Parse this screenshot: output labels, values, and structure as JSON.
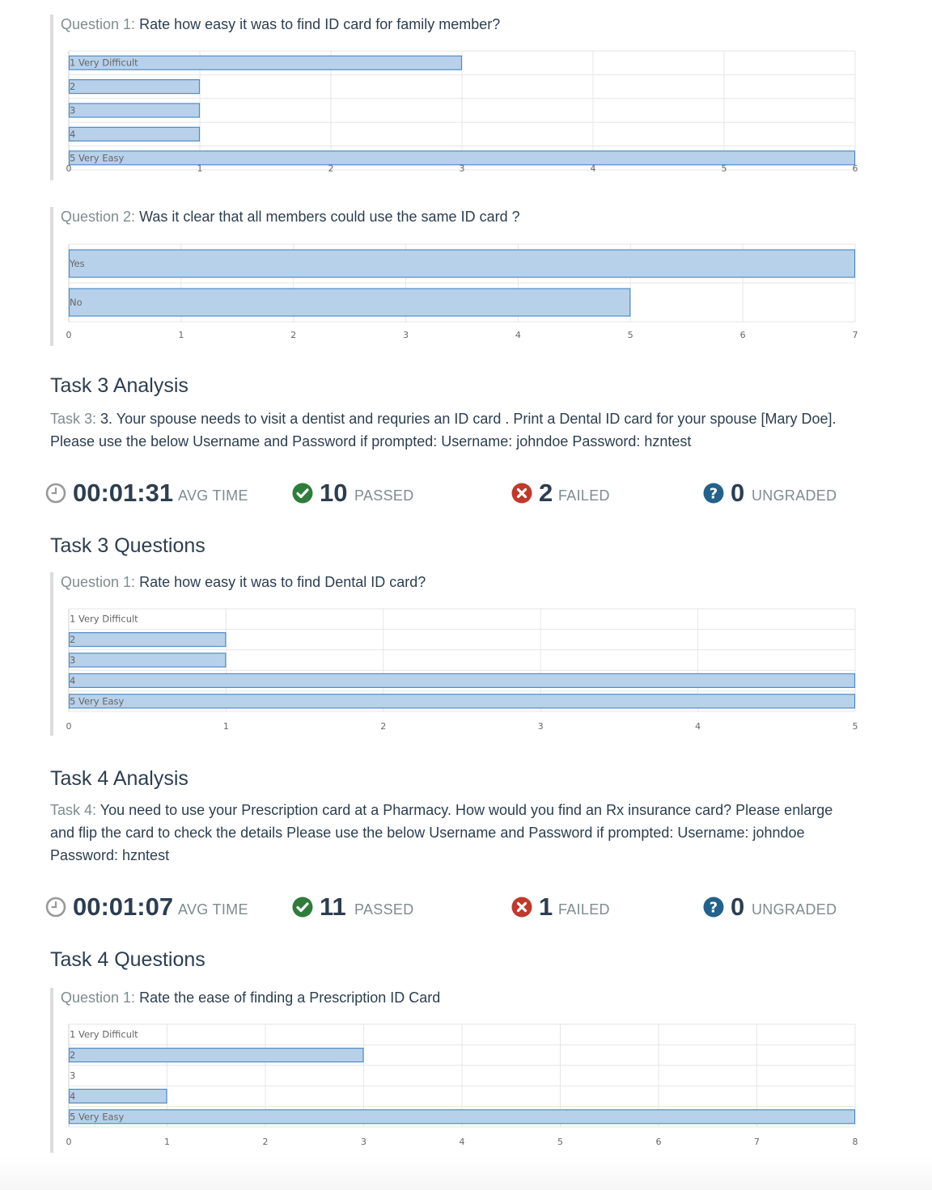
{
  "colors": {
    "bar_fill": "#b8d1ea",
    "bar_stroke": "#4f8cc9",
    "grid": "#e6e6e6",
    "passed": "#2e7d3a",
    "failed": "#c0392b",
    "ungraded": "#23628c",
    "clock": "#999999"
  },
  "task2_questions": [
    {
      "prefix": "Question 1:",
      "text": "Rate how easy it was to find ID card for family member?",
      "chart_data": {
        "type": "bar",
        "orientation": "horizontal",
        "categories": [
          "1 Very Difficult",
          "2",
          "3",
          "4",
          "5 Very Easy"
        ],
        "values": [
          3,
          1,
          1,
          1,
          6
        ],
        "xlim": [
          0,
          6
        ],
        "xticks": [
          "0",
          "1",
          "2",
          "3",
          "4",
          "5",
          "6"
        ]
      }
    },
    {
      "prefix": "Question 2:",
      "text": "Was it clear that all members could use the same ID card ?",
      "chart_data": {
        "type": "bar",
        "orientation": "horizontal",
        "categories": [
          "Yes",
          "No"
        ],
        "values": [
          7,
          5
        ],
        "xlim": [
          0,
          7
        ],
        "xticks": [
          "0",
          "1",
          "2",
          "3",
          "4",
          "5",
          "6",
          "7"
        ]
      }
    }
  ],
  "task3": {
    "analysis_heading": "Task 3 Analysis",
    "label": "Task 3:",
    "description": "3. Your spouse needs to visit a dentist and requries an ID card . Print a Dental ID card for your spouse [Mary Doe]. Please use the below Username and Password if prompted: Username: johndoe Password: hzntest",
    "stats": {
      "avg_time": "00:01:31",
      "avg_time_label": "AVG TIME",
      "passed": "10",
      "passed_label": "PASSED",
      "failed": "2",
      "failed_label": "FAILED",
      "ungraded": "0",
      "ungraded_label": "UNGRADED"
    },
    "questions_heading": "Task 3 Questions",
    "questions": [
      {
        "prefix": "Question 1:",
        "text": "Rate how easy it was to find Dental ID card?",
        "chart_data": {
          "type": "bar",
          "orientation": "horizontal",
          "categories": [
            "1 Very Difficult",
            "2",
            "3",
            "4",
            "5 Very Easy"
          ],
          "values": [
            0,
            1,
            1,
            5,
            5
          ],
          "xlim": [
            0,
            5
          ],
          "xticks": [
            "0",
            "1",
            "2",
            "3",
            "4",
            "5"
          ]
        }
      }
    ]
  },
  "task4": {
    "analysis_heading": "Task 4 Analysis",
    "label": "Task 4:",
    "description": "You need to use your Prescription card at a Pharmacy. How would you find an Rx insurance card? Please enlarge and flip the card to check the details Please use the below Username and Password if prompted: Username: johndoe Password: hzntest",
    "stats": {
      "avg_time": "00:01:07",
      "avg_time_label": "AVG TIME",
      "passed": "11",
      "passed_label": "PASSED",
      "failed": "1",
      "failed_label": "FAILED",
      "ungraded": "0",
      "ungraded_label": "UNGRADED"
    },
    "questions_heading": "Task 4 Questions",
    "questions": [
      {
        "prefix": "Question 1:",
        "text": "Rate the ease of finding a Prescription ID Card",
        "chart_data": {
          "type": "bar",
          "orientation": "horizontal",
          "categories": [
            "1 Very Difficult",
            "2",
            "3",
            "4",
            "5 Very Easy"
          ],
          "values": [
            0,
            3,
            0,
            1,
            8
          ],
          "xlim": [
            0,
            8
          ],
          "xticks": [
            "0",
            "1",
            "2",
            "3",
            "4",
            "5",
            "6",
            "7",
            "8"
          ]
        }
      }
    ]
  },
  "icons": {
    "clock": "clock-icon",
    "passed": "check-circle-icon",
    "failed": "x-circle-icon",
    "ungraded": "question-circle-icon"
  }
}
